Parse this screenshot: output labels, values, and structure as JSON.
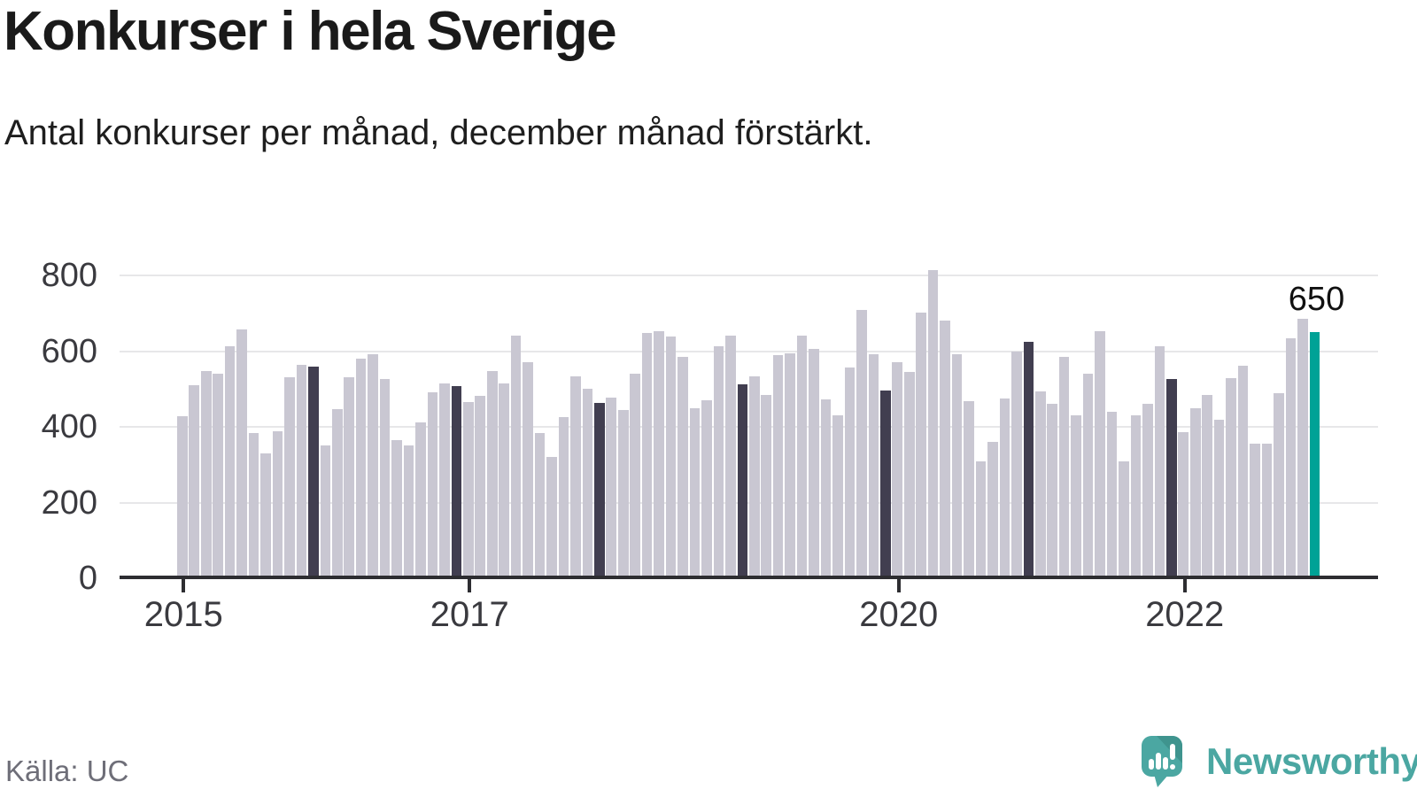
{
  "header": {
    "title": "Konkurser i hela Sverige",
    "subtitle": "Antal konkurser per månad, december månad förstärkt."
  },
  "footer": {
    "source": "Källa: UC",
    "brand": "Newsworthy"
  },
  "colors": {
    "bar": "#c9c7d2",
    "december_bar": "#413e50",
    "highlight_bar": "#00a296",
    "grid": "#e7e7e9",
    "axis": "#2d2d31",
    "tick_label": "#3a3a3f",
    "title_text": "#1a1a1a",
    "source_text": "#6e6e78",
    "brand_teal": "#4ba7a2"
  },
  "chart_data": {
    "type": "bar",
    "title": "Konkurser i hela Sverige",
    "subtitle": "Antal konkurser per månad, december månad förstärkt.",
    "ylabel": "",
    "xlabel": "",
    "ylim": [
      0,
      800
    ],
    "y_ticks": [
      0,
      200,
      400,
      600,
      800
    ],
    "grid": "horizontal",
    "legend": "none",
    "start_month": "2015-01",
    "values": [
      428,
      510,
      548,
      540,
      612,
      658,
      383,
      330,
      388,
      530,
      565,
      560,
      350,
      447,
      530,
      580,
      592,
      527,
      365,
      350,
      412,
      492,
      514,
      507,
      465,
      482,
      548,
      514,
      640,
      571,
      384,
      320,
      425,
      534,
      500,
      464,
      478,
      444,
      541,
      648,
      652,
      639,
      584,
      449,
      471,
      612,
      642,
      512,
      533,
      484,
      590,
      595,
      640,
      605,
      472,
      430,
      558,
      708,
      592,
      495,
      572,
      545,
      703,
      815,
      681,
      591,
      468,
      308,
      360,
      475,
      600,
      625,
      493,
      462,
      585,
      431,
      541,
      653,
      441,
      310,
      431,
      460,
      613,
      527,
      385,
      449,
      485,
      418,
      529,
      561,
      355,
      355,
      489,
      633,
      685,
      650
    ],
    "december_indices": [
      11,
      23,
      35,
      47,
      59,
      71,
      83
    ],
    "highlight": {
      "index": 95,
      "month": "2022-12",
      "value": 650
    },
    "annotation": {
      "text": "650"
    },
    "x_ticks": [
      {
        "month_index": 0,
        "label": "2015"
      },
      {
        "month_index": 24,
        "label": "2017"
      },
      {
        "month_index": 60,
        "label": "2020"
      },
      {
        "month_index": 84,
        "label": "2022"
      }
    ]
  }
}
